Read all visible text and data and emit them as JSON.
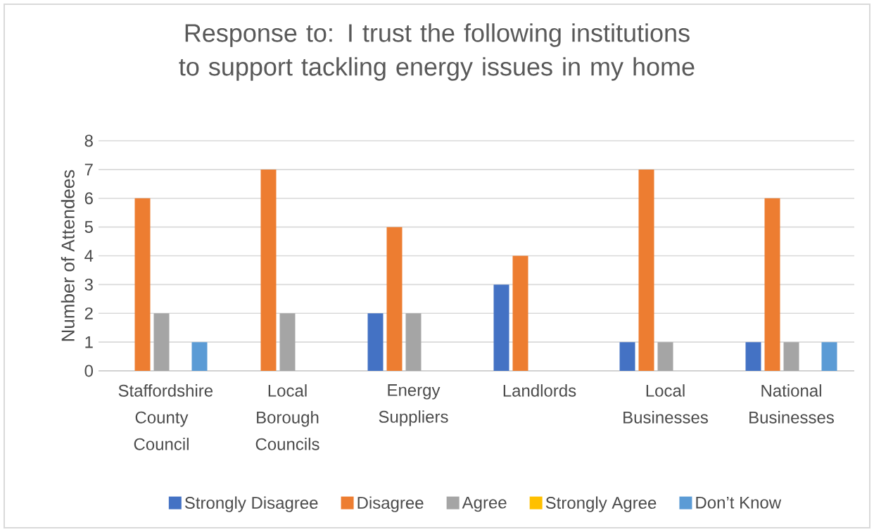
{
  "chart_data": {
    "type": "bar",
    "title": "Response to: I trust the following institutions to support tackling energy issues in my home",
    "ylabel": "Number of Attendees",
    "categories": [
      "Staffordshire County Council",
      "Local Borough Councils",
      "Energy Suppliers",
      "Landlords",
      "Local Businesses",
      "National Businesses"
    ],
    "series": [
      {
        "name": "Strongly Disagree",
        "color": "#4472c4",
        "values": [
          0,
          0,
          2,
          3,
          1,
          1
        ]
      },
      {
        "name": "Disagree",
        "color": "#ed7d31",
        "values": [
          6,
          7,
          5,
          4,
          7,
          6
        ]
      },
      {
        "name": "Agree",
        "color": "#a5a5a5",
        "values": [
          2,
          2,
          2,
          0,
          1,
          1
        ]
      },
      {
        "name": "Strongly Agree",
        "color": "#ffc000",
        "values": [
          0,
          0,
          0,
          0,
          0,
          0
        ]
      },
      {
        "name": "Don’t Know",
        "color": "#5b9bd5",
        "values": [
          1,
          0,
          0,
          0,
          0,
          1
        ]
      }
    ],
    "ylim": [
      0,
      8
    ],
    "yticks": [
      0,
      1,
      2,
      3,
      4,
      5,
      6,
      7,
      8
    ],
    "grid": "y",
    "legend": "bottom"
  }
}
